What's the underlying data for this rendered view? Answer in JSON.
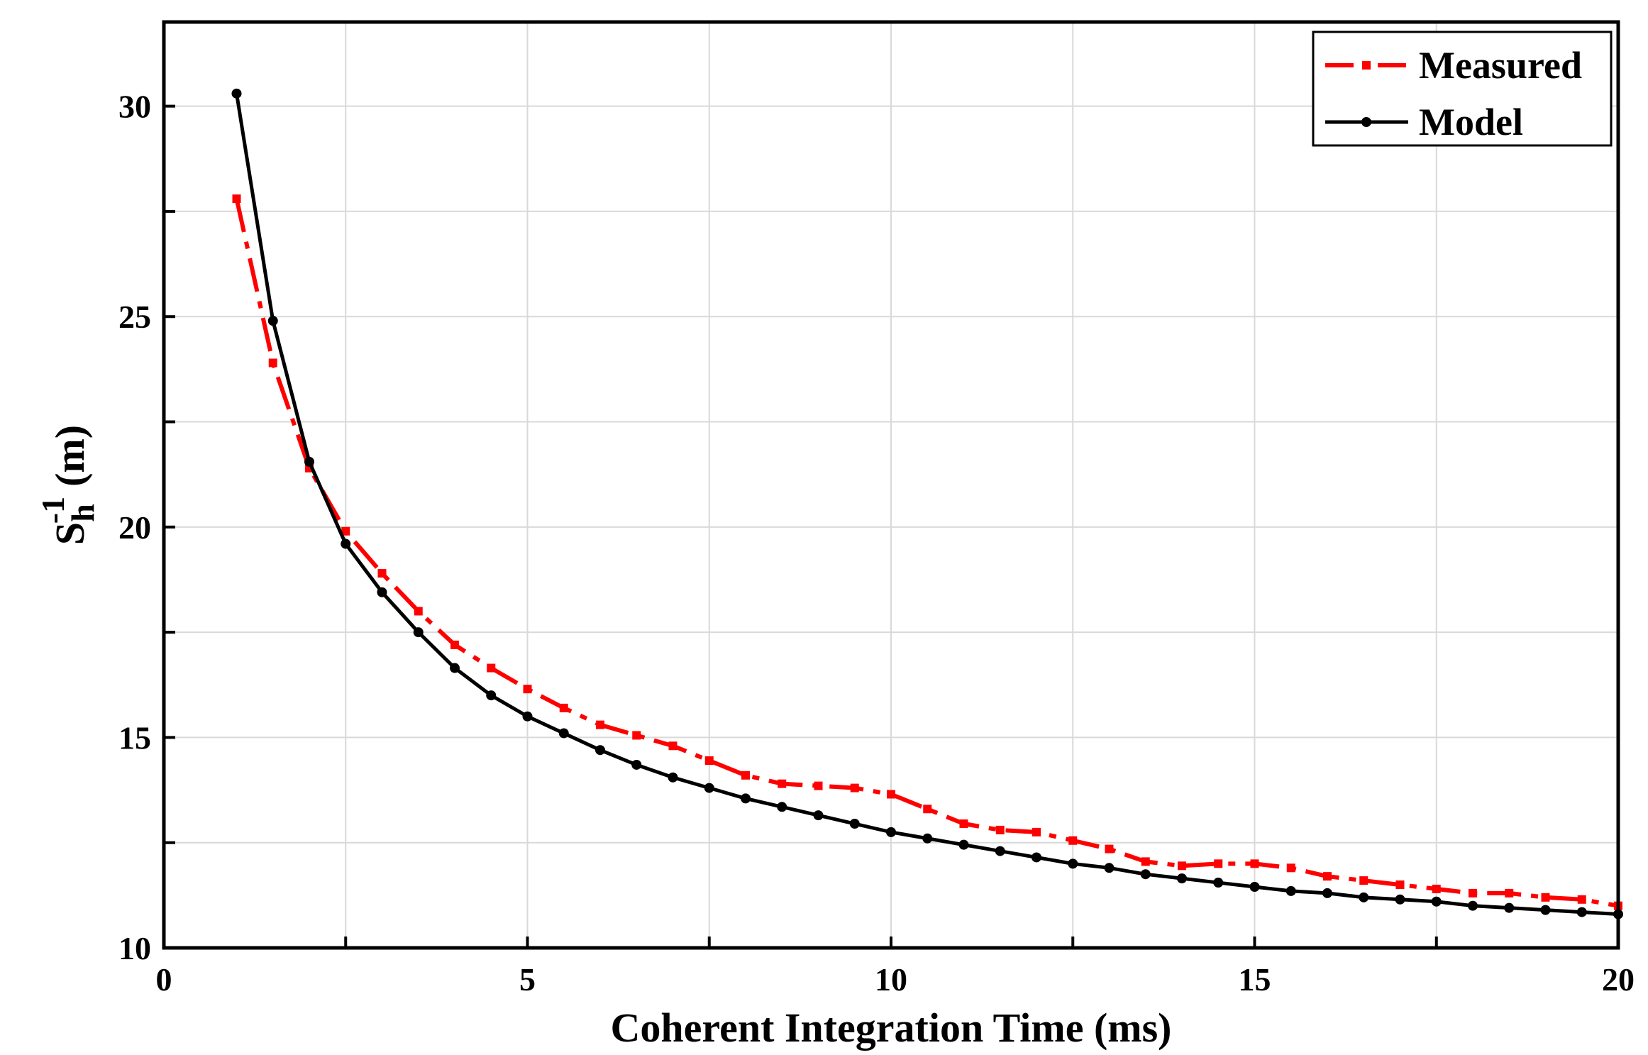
{
  "chart_data": {
    "type": "line",
    "xlabel": "Coherent Integration Time (ms)",
    "ylabel": {
      "base": "S",
      "sub": "h",
      "sup": "-1",
      "unit": "(m)"
    },
    "xlim": [
      0,
      20
    ],
    "ylim": [
      10,
      32
    ],
    "xticks": [
      0,
      5,
      10,
      15,
      20
    ],
    "yticks": [
      10,
      15,
      20,
      25,
      30
    ],
    "grid": true,
    "legend_position": "top-right",
    "series": [
      {
        "name": "Measured",
        "color": "#ff0000",
        "style": "dash-dot with square markers",
        "points": [
          [
            1.0,
            27.8
          ],
          [
            1.5,
            23.9
          ],
          [
            2.0,
            21.4
          ],
          [
            2.5,
            19.9
          ],
          [
            3.0,
            18.9
          ],
          [
            3.5,
            18.0
          ],
          [
            4.0,
            17.2
          ],
          [
            4.5,
            16.65
          ],
          [
            5.0,
            16.15
          ],
          [
            5.5,
            15.7
          ],
          [
            6.0,
            15.3
          ],
          [
            6.5,
            15.05
          ],
          [
            7.0,
            14.8
          ],
          [
            7.5,
            14.45
          ],
          [
            8.0,
            14.1
          ],
          [
            8.5,
            13.9
          ],
          [
            9.0,
            13.85
          ],
          [
            9.5,
            13.8
          ],
          [
            10.0,
            13.65
          ],
          [
            10.5,
            13.3
          ],
          [
            11.0,
            12.95
          ],
          [
            11.5,
            12.8
          ],
          [
            12.0,
            12.75
          ],
          [
            12.5,
            12.55
          ],
          [
            13.0,
            12.35
          ],
          [
            13.5,
            12.05
          ],
          [
            14.0,
            11.95
          ],
          [
            14.5,
            12.0
          ],
          [
            15.0,
            12.0
          ],
          [
            15.5,
            11.9
          ],
          [
            16.0,
            11.7
          ],
          [
            16.5,
            11.6
          ],
          [
            17.0,
            11.5
          ],
          [
            17.5,
            11.4
          ],
          [
            18.0,
            11.3
          ],
          [
            18.5,
            11.3
          ],
          [
            19.0,
            11.2
          ],
          [
            19.5,
            11.15
          ],
          [
            20.0,
            11.0
          ]
        ]
      },
      {
        "name": "Model",
        "color": "#000000",
        "style": "solid with dot markers",
        "points": [
          [
            1.0,
            30.3
          ],
          [
            1.5,
            24.9
          ],
          [
            2.0,
            21.55
          ],
          [
            2.5,
            19.6
          ],
          [
            3.0,
            18.45
          ],
          [
            3.5,
            17.5
          ],
          [
            4.0,
            16.65
          ],
          [
            4.5,
            16.0
          ],
          [
            5.0,
            15.5
          ],
          [
            5.5,
            15.1
          ],
          [
            6.0,
            14.7
          ],
          [
            6.5,
            14.35
          ],
          [
            7.0,
            14.05
          ],
          [
            7.5,
            13.8
          ],
          [
            8.0,
            13.55
          ],
          [
            8.5,
            13.35
          ],
          [
            9.0,
            13.15
          ],
          [
            9.5,
            12.95
          ],
          [
            10.0,
            12.75
          ],
          [
            10.5,
            12.6
          ],
          [
            11.0,
            12.45
          ],
          [
            11.5,
            12.3
          ],
          [
            12.0,
            12.15
          ],
          [
            12.5,
            12.0
          ],
          [
            13.0,
            11.9
          ],
          [
            13.5,
            11.75
          ],
          [
            14.0,
            11.65
          ],
          [
            14.5,
            11.55
          ],
          [
            15.0,
            11.45
          ],
          [
            15.5,
            11.35
          ],
          [
            16.0,
            11.3
          ],
          [
            16.5,
            11.2
          ],
          [
            17.0,
            11.15
          ],
          [
            17.5,
            11.1
          ],
          [
            18.0,
            11.0
          ],
          [
            18.5,
            10.95
          ],
          [
            19.0,
            10.9
          ],
          [
            19.5,
            10.85
          ],
          [
            20.0,
            10.8
          ]
        ]
      }
    ]
  }
}
